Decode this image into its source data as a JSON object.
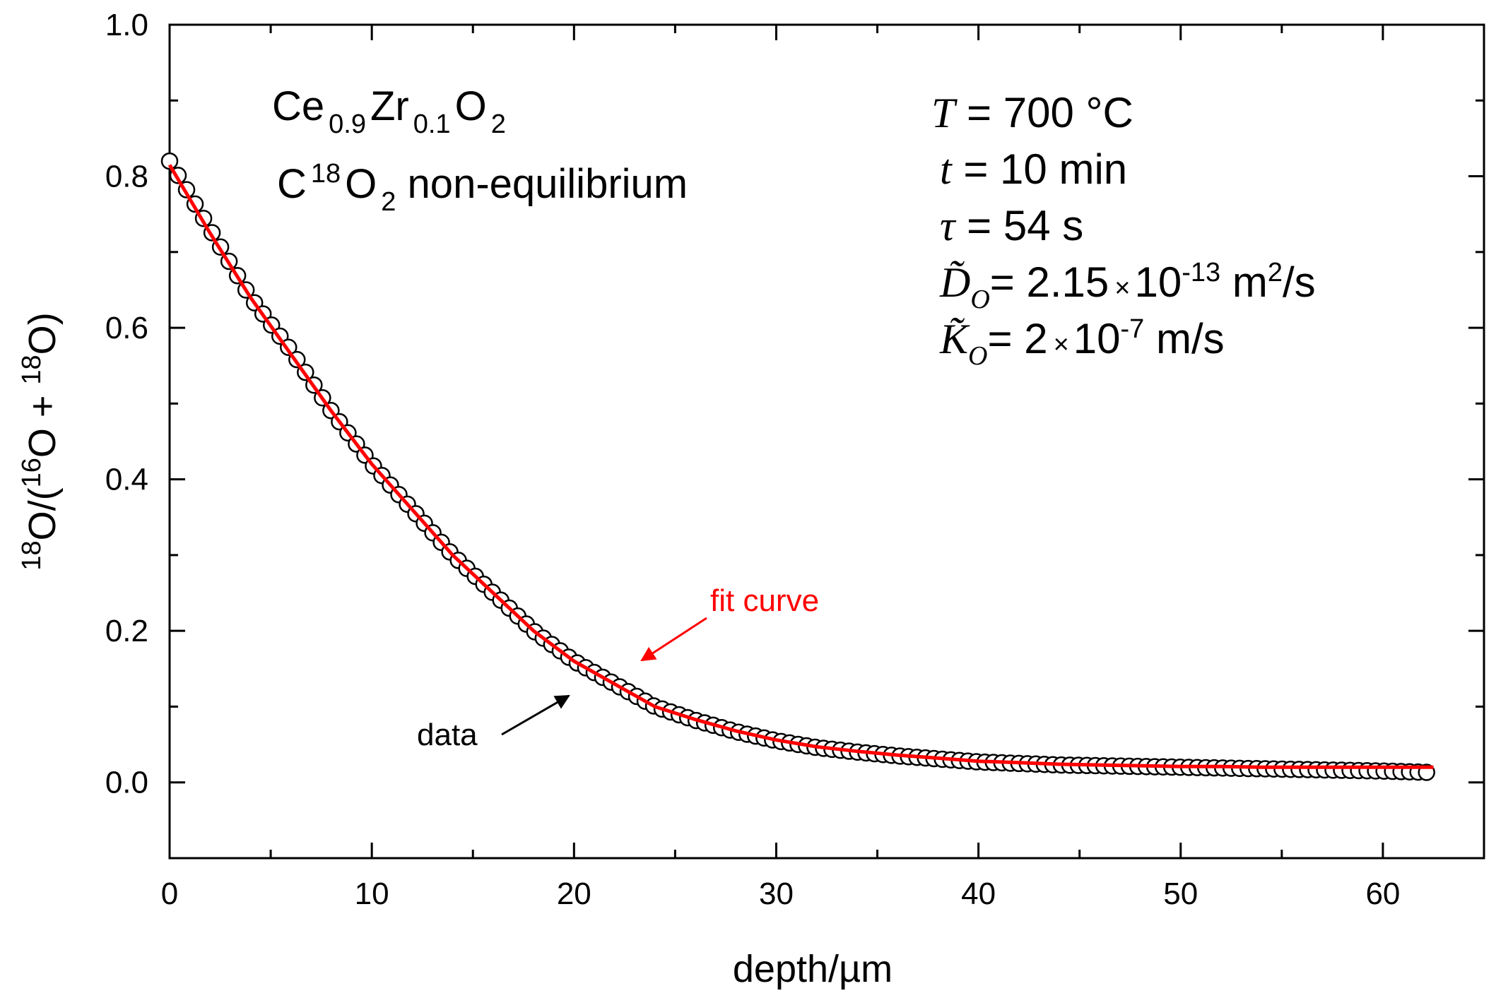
{
  "chart_data": {
    "type": "scatter",
    "xlabel": "depth/µm",
    "ylabel_parts": {
      "sup1": "18",
      "a": "O/(",
      "sup2": "16",
      "b": "O + ",
      "sup3": "18",
      "c": "O)"
    },
    "xlim": [
      0,
      65
    ],
    "ylim": [
      -0.1,
      1.0
    ],
    "xticks": [
      0,
      10,
      20,
      30,
      40,
      50,
      60
    ],
    "xtick_labels": [
      "0",
      "10",
      "20",
      "30",
      "40",
      "50",
      "60"
    ],
    "yticks": [
      0.0,
      0.2,
      0.4,
      0.6,
      0.8,
      1.0
    ],
    "ytick_labels": [
      "0.0",
      "0.2",
      "0.4",
      "0.6",
      "0.8",
      "1.0"
    ],
    "grid": false,
    "series": [
      {
        "name": "data",
        "style": "open-circle",
        "x": [
          0,
          2,
          4,
          6,
          8,
          10,
          12,
          14,
          16,
          18,
          20,
          22,
          24,
          26,
          28,
          30,
          32,
          34,
          36,
          38,
          40,
          42,
          44,
          46,
          48,
          50,
          52,
          54,
          56,
          58,
          60,
          62.5
        ],
        "y": [
          0.82,
          0.73,
          0.64,
          0.57,
          0.49,
          0.42,
          0.36,
          0.3,
          0.25,
          0.2,
          0.16,
          0.13,
          0.1,
          0.082,
          0.067,
          0.055,
          0.046,
          0.04,
          0.035,
          0.031,
          0.027,
          0.025,
          0.023,
          0.022,
          0.021,
          0.02,
          0.019,
          0.018,
          0.017,
          0.016,
          0.015,
          0.013
        ]
      },
      {
        "name": "fit curve",
        "style": "line",
        "color": "#ff0000",
        "x": [
          0,
          2,
          4,
          6,
          8,
          10,
          12,
          14,
          16,
          18,
          20,
          22,
          24,
          26,
          28,
          30,
          32,
          34,
          36,
          38,
          40,
          42,
          44,
          46,
          48,
          50,
          52,
          54,
          56,
          58,
          60,
          62.5
        ],
        "y": [
          0.815,
          0.725,
          0.64,
          0.565,
          0.49,
          0.42,
          0.36,
          0.3,
          0.25,
          0.2,
          0.16,
          0.13,
          0.1,
          0.083,
          0.068,
          0.056,
          0.047,
          0.041,
          0.036,
          0.032,
          0.028,
          0.026,
          0.024,
          0.023,
          0.022,
          0.021,
          0.021,
          0.02,
          0.02,
          0.02,
          0.02,
          0.02
        ]
      }
    ],
    "annotations": {
      "material": {
        "a": "Ce",
        "s1": "0.9",
        "b": "Zr",
        "s2": "0.1",
        "c": "O",
        "s3": "2"
      },
      "gas": {
        "a": "C",
        "sup": "18",
        "b": "O",
        "sub": "2",
        "c": " non-equilibrium"
      },
      "T": {
        "sym": "T",
        "rest": " = 700 °C"
      },
      "t": {
        "sym": "t",
        "rest": " = 10 min"
      },
      "tau": {
        "sym": "τ",
        "rest": " = 54 s"
      },
      "D": {
        "sym": "D̃",
        "sub": "O",
        "mid": "= 2.15",
        "times": "×",
        "base": "10",
        "exp": "-13",
        "unit": " m",
        "unit_exp": "2",
        "unit_tail": "/s"
      },
      "K": {
        "sym": "K̃",
        "sub": "O",
        "mid": "= 2",
        "times": "×",
        "base": "10",
        "exp": "-7",
        "unit": " m/s"
      },
      "data_label": "data",
      "fit_label": "fit curve",
      "data_arrow_color": "#000000",
      "fit_arrow_color": "#ff0000"
    }
  }
}
